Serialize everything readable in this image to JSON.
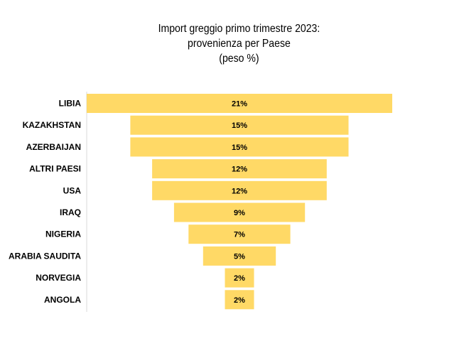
{
  "chart_data": {
    "type": "bar",
    "orientation": "horizontal",
    "style": "funnel",
    "title_lines": [
      "Import greggio primo trimestre 2023:",
      "provenienza per Paese",
      "(peso %)"
    ],
    "categories": [
      "LIBIA",
      "KAZAKHSTAN",
      "AZERBAIJAN",
      "ALTRI PAESI",
      "USA",
      "IRAQ",
      "NIGERIA",
      "ARABIA SAUDITA",
      "NORVEGIA",
      "ANGOLA"
    ],
    "values": [
      21,
      15,
      15,
      12,
      12,
      9,
      7,
      5,
      2,
      2
    ],
    "value_labels": [
      "21%",
      "15%",
      "15%",
      "12%",
      "12%",
      "9%",
      "7%",
      "5%",
      "2%",
      "2%"
    ],
    "bar_color": "#FFD966",
    "grid": false,
    "legend": "none"
  }
}
